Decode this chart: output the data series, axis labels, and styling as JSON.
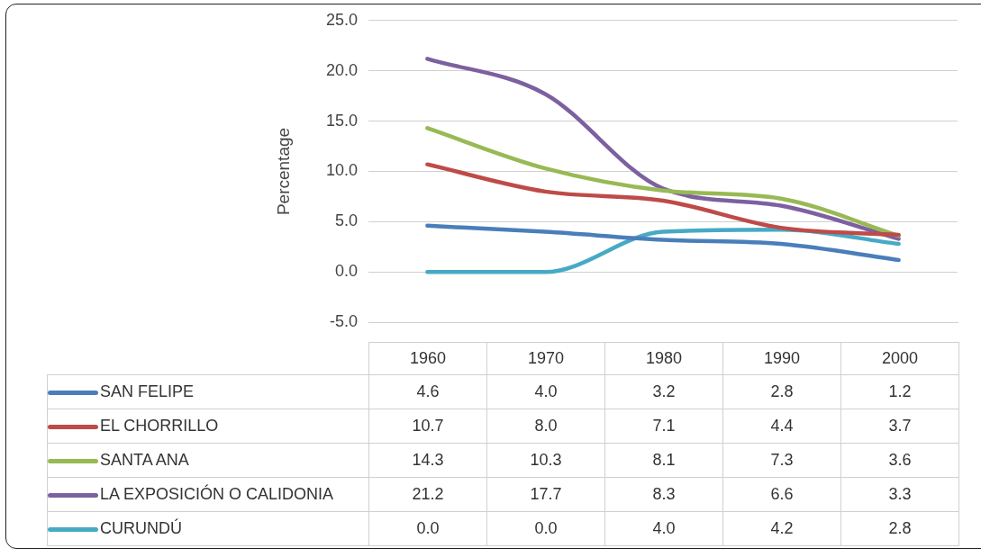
{
  "chart_data": {
    "type": "line",
    "ylabel": "Percentage",
    "categories": [
      "1960",
      "1970",
      "1980",
      "1990",
      "2000"
    ],
    "series": [
      {
        "name": "SAN FELIPE",
        "color": "#4a7ebb",
        "values": [
          4.6,
          4.0,
          3.2,
          2.8,
          1.2
        ],
        "value_labels": [
          "4.6",
          "4.0",
          "3.2",
          "2.8",
          "1.2"
        ]
      },
      {
        "name": "EL CHORRILLO",
        "color": "#be4b48",
        "values": [
          10.7,
          8.0,
          7.1,
          4.4,
          3.7
        ],
        "value_labels": [
          "10.7",
          "8.0",
          "7.1",
          "4.4",
          "3.7"
        ]
      },
      {
        "name": "SANTA ANA",
        "color": "#98b954",
        "values": [
          14.3,
          10.3,
          8.1,
          7.3,
          3.6
        ],
        "value_labels": [
          "14.3",
          "10.3",
          "8.1",
          "7.3",
          "3.6"
        ]
      },
      {
        "name": "LA EXPOSICIÓN O CALIDONIA",
        "color": "#7d60a0",
        "values": [
          21.2,
          17.7,
          8.3,
          6.6,
          3.3
        ],
        "value_labels": [
          "21.2",
          "17.7",
          "8.3",
          "6.6",
          "3.3"
        ]
      },
      {
        "name": "CURUNDÚ",
        "color": "#46aac5",
        "values": [
          0.0,
          0.0,
          4.0,
          4.2,
          2.8
        ],
        "value_labels": [
          "0.0",
          "0.0",
          "4.0",
          "4.2",
          "2.8"
        ]
      }
    ],
    "ylim": [
      -5,
      25
    ],
    "yticks": [
      {
        "value": -5,
        "label": "-5.0"
      },
      {
        "value": 0,
        "label": "0.0"
      },
      {
        "value": 5,
        "label": "5.0"
      },
      {
        "value": 10,
        "label": "10.0"
      },
      {
        "value": 15,
        "label": "15.0"
      },
      {
        "value": 20,
        "label": "20.0"
      },
      {
        "value": 25,
        "label": "25.0"
      }
    ],
    "grid": "y",
    "legend": "bottom"
  }
}
